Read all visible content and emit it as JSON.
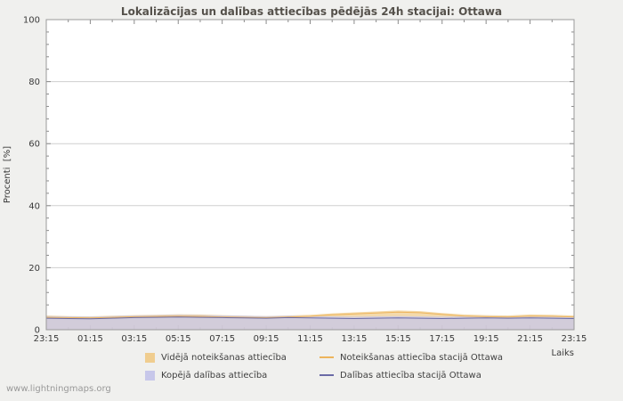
{
  "watermark": "www.lightningmaps.org",
  "chart_data": {
    "type": "area",
    "title": "Lokalizācijas un dalības attiecības pēdējās 24h stacijai: Ottawa",
    "ylabel": "Procenti  [%]",
    "xlabel": "Laiks",
    "ylim": [
      0,
      100
    ],
    "y_ticks": [
      0,
      20,
      40,
      60,
      80,
      100
    ],
    "x_ticks": [
      "23:15",
      "01:15",
      "03:15",
      "05:15",
      "07:15",
      "09:15",
      "11:15",
      "13:15",
      "15:15",
      "17:15",
      "19:15",
      "21:15",
      "23:15"
    ],
    "grid": "horizontal",
    "legend_position": "bottom",
    "series": [
      {
        "name": "Vidējā noteikšanas attiecība",
        "type": "area",
        "color": "#f0cd8f",
        "values": [
          4.6,
          4.4,
          4.3,
          4.5,
          4.7,
          4.8,
          5.0,
          4.9,
          4.7,
          4.5,
          4.4,
          4.6,
          4.8,
          5.3,
          5.6,
          5.9,
          6.2,
          6.0,
          5.4,
          4.9,
          4.7,
          4.6,
          4.9,
          4.8,
          4.6
        ]
      },
      {
        "name": "Kopējā dalības attiecība",
        "type": "area",
        "color": "#c7c7ea",
        "values": [
          4.4,
          4.3,
          4.2,
          4.4,
          4.6,
          4.7,
          4.8,
          4.7,
          4.6,
          4.5,
          4.4,
          4.5,
          4.4,
          4.3,
          4.2,
          4.3,
          4.4,
          4.3,
          4.2,
          4.3,
          4.4,
          4.3,
          4.4,
          4.3,
          4.2
        ]
      },
      {
        "name": "Noteikšanas attiecība stacijā Ottawa",
        "type": "line",
        "color": "#edb45c",
        "values": [
          4.0,
          3.9,
          3.8,
          4.0,
          4.2,
          4.3,
          4.4,
          4.3,
          4.1,
          4.0,
          3.9,
          4.1,
          4.3,
          4.8,
          5.1,
          5.4,
          5.7,
          5.5,
          4.9,
          4.4,
          4.2,
          4.1,
          4.4,
          4.3,
          4.1
        ]
      },
      {
        "name": "Dalības attiecība stacijā Ottawa",
        "type": "line",
        "color": "#6b6ba6",
        "values": [
          3.7,
          3.6,
          3.5,
          3.7,
          3.9,
          4.0,
          4.1,
          4.0,
          3.9,
          3.8,
          3.7,
          3.9,
          3.8,
          3.7,
          3.6,
          3.7,
          3.8,
          3.7,
          3.6,
          3.7,
          3.8,
          3.7,
          3.8,
          3.7,
          3.6
        ]
      }
    ]
  }
}
